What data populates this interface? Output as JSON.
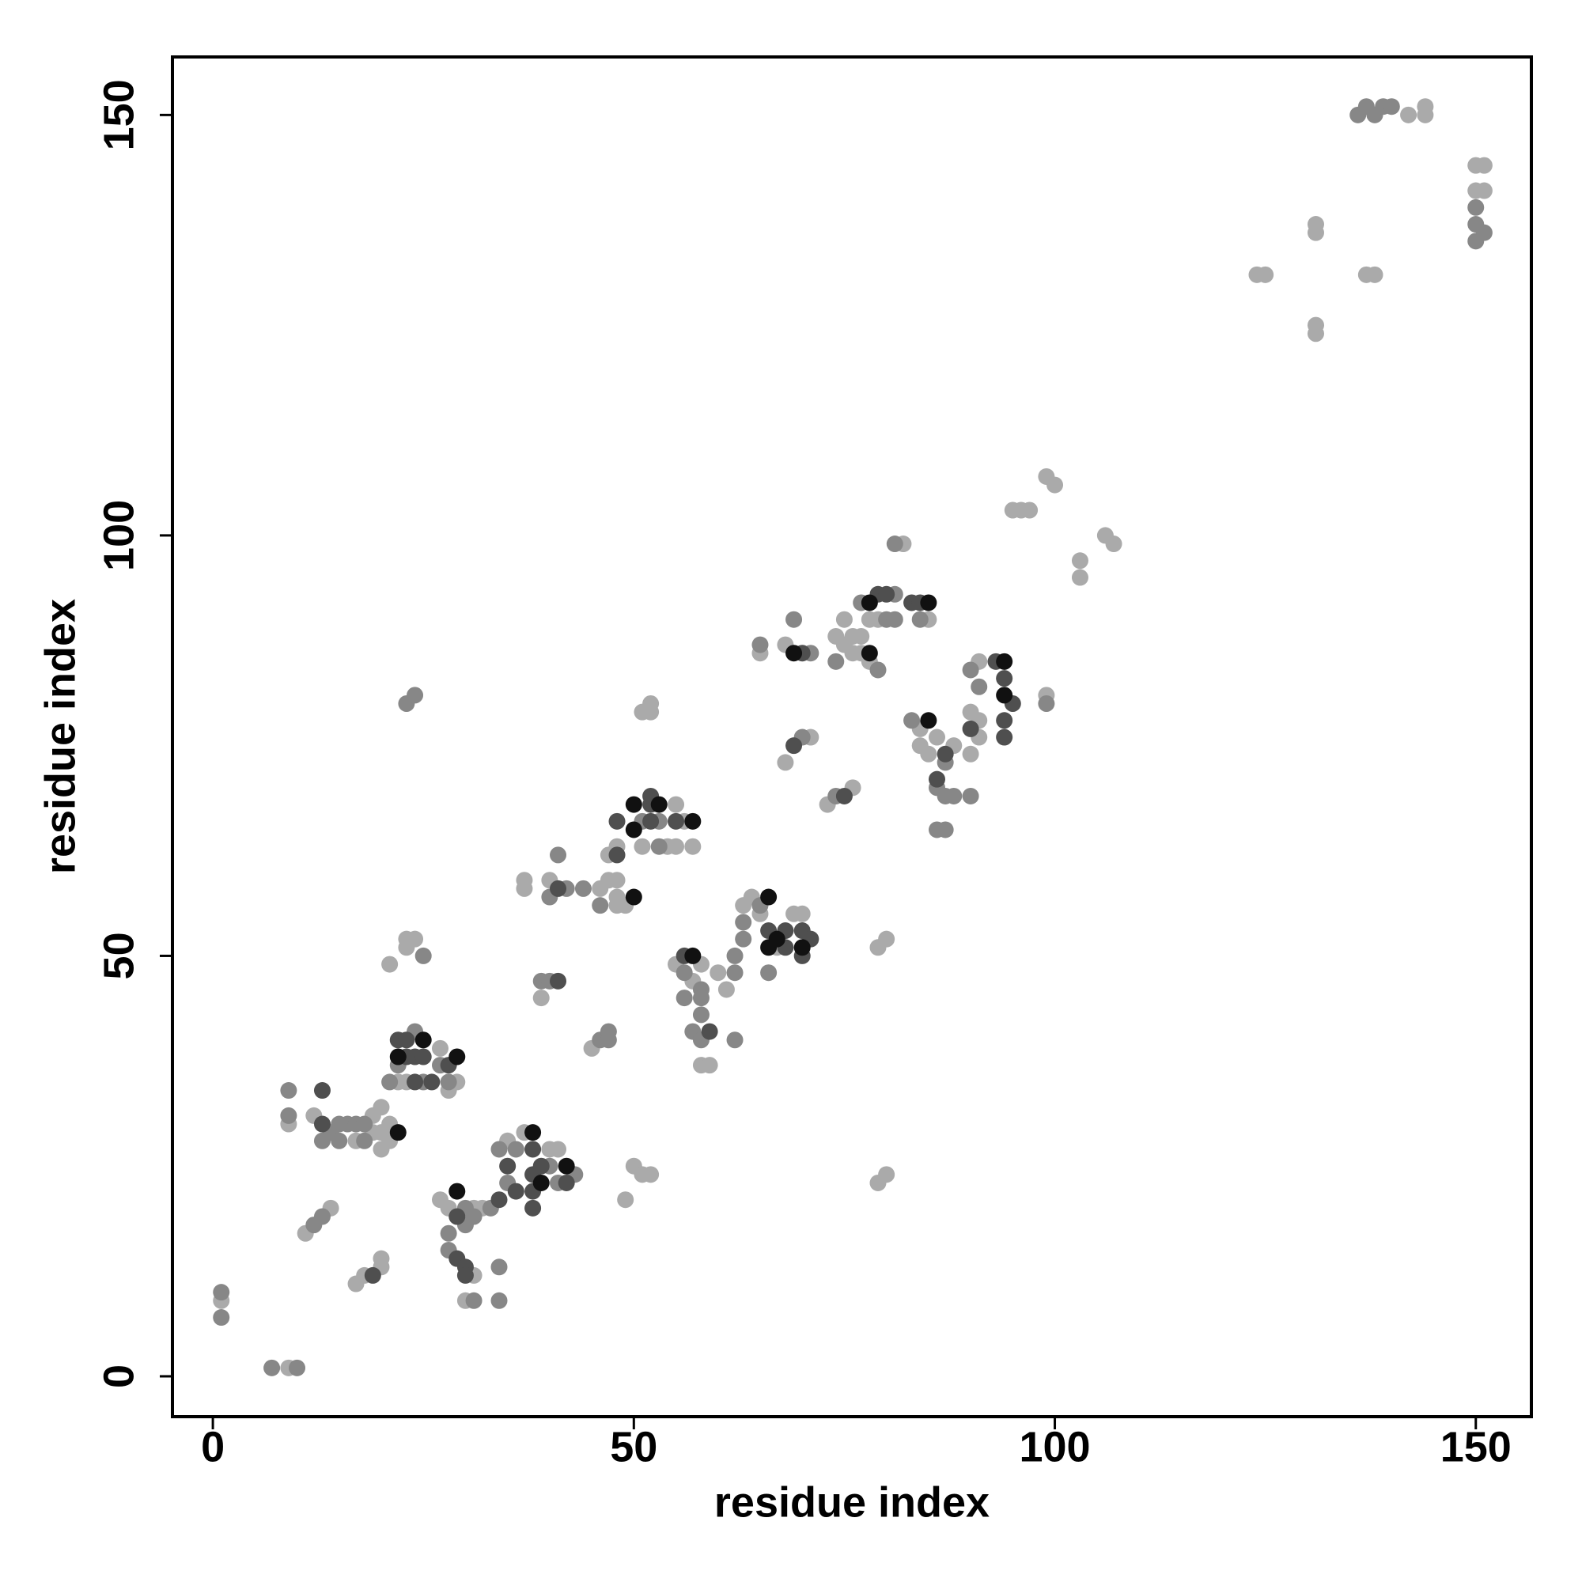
{
  "chart_data": {
    "type": "scatter",
    "x_label": "residue index",
    "y_label": "residue index",
    "xlim": [
      -4.8,
      156.6
    ],
    "ylim": [
      -4.8,
      156.9
    ],
    "xticks": [
      0,
      50,
      100,
      150
    ],
    "yticks": [
      0,
      50,
      100,
      150
    ],
    "series": [
      {
        "color": "#aaaaaa",
        "x": [
          9,
          1,
          9,
          12,
          17,
          19,
          19,
          20,
          21,
          20,
          21,
          20,
          11,
          14,
          17,
          18,
          20,
          20,
          22,
          27,
          28,
          29,
          23,
          23,
          24,
          23,
          21,
          27,
          28,
          31,
          30,
          31,
          32,
          35,
          37,
          40,
          41,
          37,
          37,
          40,
          39,
          45,
          49,
          50,
          51,
          52,
          46,
          47,
          48,
          48,
          48,
          49,
          47,
          48,
          51,
          54,
          55,
          55,
          56,
          57,
          51,
          52,
          52,
          55,
          57,
          58,
          58,
          59,
          60,
          61,
          63,
          64,
          65,
          67,
          69,
          70,
          65,
          68,
          68,
          71,
          73,
          76,
          74,
          75,
          76,
          76,
          77,
          77,
          75,
          78,
          79,
          78,
          82,
          85,
          79,
          80,
          79,
          80,
          84,
          84,
          85,
          86,
          88,
          90,
          90,
          91,
          91,
          91,
          99,
          95,
          96,
          97,
          99,
          100,
          103,
          103,
          106,
          107,
          124,
          125,
          131,
          131,
          131,
          131,
          137,
          138,
          142,
          144,
          144,
          150,
          151,
          150,
          151
        ],
        "y": [
          1,
          9,
          30,
          31,
          28,
          31,
          29,
          29,
          28,
          27,
          30,
          32,
          17,
          20,
          11,
          12,
          13,
          14,
          35,
          39,
          34,
          35,
          35,
          52,
          52,
          51,
          49,
          21,
          20,
          12,
          9,
          20,
          20,
          28,
          29,
          27,
          27,
          59,
          58,
          59,
          45,
          39,
          21,
          25,
          24,
          24,
          58,
          59,
          59,
          57,
          56,
          56,
          62,
          63,
          63,
          63,
          68,
          63,
          66,
          63,
          79,
          80,
          79,
          49,
          47,
          49,
          37,
          37,
          48,
          46,
          56,
          57,
          55,
          51,
          55,
          55,
          86,
          87,
          73,
          76,
          68,
          70,
          88,
          87,
          88,
          86,
          86,
          88,
          90,
          90,
          90,
          85,
          99,
          90,
          51,
          52,
          23,
          24,
          77,
          75,
          74,
          76,
          75,
          74,
          79,
          76,
          78,
          85,
          81,
          103,
          103,
          103,
          107,
          106,
          97,
          95,
          100,
          99,
          131,
          131,
          136,
          137,
          124,
          125,
          131,
          131,
          150,
          150,
          151,
          144,
          144,
          141,
          141
        ]
      },
      {
        "color": "#878787",
        "x": [
          7,
          10,
          1,
          1,
          9,
          9,
          14,
          15,
          13,
          16,
          15,
          17,
          18,
          18,
          12,
          13,
          21,
          22,
          24,
          27,
          28,
          25,
          25,
          23,
          24,
          28,
          28,
          31,
          30,
          30,
          31,
          33,
          34,
          34,
          35,
          34,
          36,
          40,
          41,
          43,
          40,
          42,
          44,
          41,
          39,
          40,
          46,
          47,
          47,
          46,
          51,
          53,
          53,
          56,
          58,
          56,
          58,
          57,
          58,
          58,
          62,
          62,
          62,
          63,
          63,
          65,
          66,
          65,
          69,
          71,
          70,
          74,
          74,
          77,
          79,
          80,
          81,
          81,
          81,
          84,
          83,
          87,
          86,
          87,
          88,
          86,
          87,
          90,
          90,
          91,
          99,
          136,
          137,
          138,
          139,
          140,
          150,
          150,
          150,
          151
        ],
        "y": [
          1,
          1,
          10,
          7,
          34,
          31,
          29,
          30,
          28,
          30,
          28,
          30,
          30,
          28,
          18,
          19,
          35,
          37,
          41,
          37,
          35,
          35,
          50,
          80,
          81,
          17,
          15,
          9,
          20,
          18,
          19,
          20,
          13,
          9,
          23,
          27,
          27,
          25,
          23,
          24,
          57,
          58,
          58,
          62,
          47,
          47,
          40,
          40,
          41,
          56,
          66,
          66,
          63,
          48,
          46,
          45,
          45,
          41,
          43,
          40,
          48,
          40,
          50,
          52,
          54,
          56,
          48,
          87,
          90,
          86,
          76,
          69,
          85,
          92,
          84,
          90,
          93,
          99,
          90,
          90,
          78,
          73,
          70,
          69,
          69,
          65,
          65,
          69,
          84,
          82,
          80,
          150,
          151,
          150,
          151,
          151,
          139,
          137,
          135,
          136
        ]
      },
      {
        "color": "#4f4f4f",
        "x": [
          19,
          13,
          13,
          22,
          23,
          23,
          24,
          25,
          26,
          28,
          24,
          29,
          29,
          30,
          30,
          34,
          35,
          36,
          38,
          38,
          38,
          38,
          39,
          42,
          41,
          41,
          48,
          48,
          52,
          52,
          52,
          55,
          56,
          59,
          66,
          68,
          68,
          70,
          71,
          70,
          70,
          69,
          75,
          79,
          80,
          83,
          84,
          87,
          86,
          90,
          93,
          94,
          95,
          94,
          94
        ],
        "y": [
          12,
          34,
          30,
          40,
          40,
          38,
          38,
          38,
          35,
          37,
          35,
          19,
          14,
          13,
          12,
          21,
          25,
          22,
          27,
          24,
          22,
          20,
          25,
          23,
          58,
          47,
          66,
          62,
          68,
          66,
          69,
          66,
          50,
          41,
          53,
          53,
          51,
          53,
          52,
          50,
          86,
          75,
          69,
          93,
          93,
          92,
          92,
          74,
          71,
          77,
          85,
          83,
          80,
          78,
          76
        ]
      },
      {
        "color": "#111111",
        "x": [
          22,
          22,
          25,
          29,
          29,
          38,
          39,
          42,
          50,
          50,
          50,
          53,
          57,
          57,
          66,
          66,
          67,
          70,
          69,
          78,
          78,
          85,
          85,
          94,
          94
        ],
        "y": [
          29,
          38,
          40,
          38,
          22,
          29,
          23,
          25,
          57,
          68,
          65,
          68,
          66,
          50,
          57,
          51,
          52,
          51,
          86,
          92,
          86,
          92,
          78,
          85,
          81
        ]
      }
    ]
  }
}
